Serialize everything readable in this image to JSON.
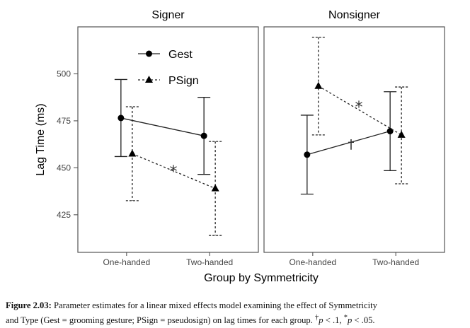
{
  "chart_data": {
    "type": "line",
    "facets": [
      "Signer",
      "Nonsigner"
    ],
    "categories": [
      "One-handed",
      "Two-handed"
    ],
    "xlabel": "Group by Symmetricity",
    "ylabel": "Lag Time (ms)",
    "yticks": [
      425,
      450,
      475,
      500
    ],
    "ylim": [
      405,
      525
    ],
    "legend": {
      "placement": "inside-top-left",
      "entries": [
        "Gest",
        "PSign"
      ]
    },
    "series": [
      {
        "name": "Gest",
        "marker": "circle",
        "linestyle": "solid",
        "panels": [
          {
            "values": [
              476.5,
              467
            ],
            "lower": [
              456,
              446.5
            ],
            "upper": [
              497,
              487.5
            ]
          },
          {
            "values": [
              457,
              469.5
            ],
            "lower": [
              436,
              448.5
            ],
            "upper": [
              478,
              490.5
            ]
          }
        ]
      },
      {
        "name": "PSign",
        "marker": "triangle",
        "linestyle": "dashed",
        "panels": [
          {
            "values": [
              457.5,
              439
            ],
            "lower": [
              432.5,
              414
            ],
            "upper": [
              482.5,
              464
            ]
          },
          {
            "values": [
              493.5,
              467.5
            ],
            "lower": [
              467.5,
              441.5
            ],
            "upper": [
              519.5,
              493
            ]
          }
        ]
      }
    ],
    "annotations": [
      {
        "panel": 0,
        "text": "*"
      },
      {
        "panel": 1,
        "text": "*"
      },
      {
        "panel": 1,
        "text": "†"
      }
    ]
  },
  "caption": {
    "label": "Figure 2.03:",
    "line1": "Parameter estimates for a linear mixed effects model examining the effect of Symmetricity",
    "line2": "and Type (Gest = grooming gesture; PSign = pseudosign) on lag times for each group.",
    "note_dagger": "†",
    "note_p1": "p",
    "note_t1": " < .1, ",
    "note_star": "*",
    "note_p2": "p",
    "note_t2": " < .05."
  }
}
